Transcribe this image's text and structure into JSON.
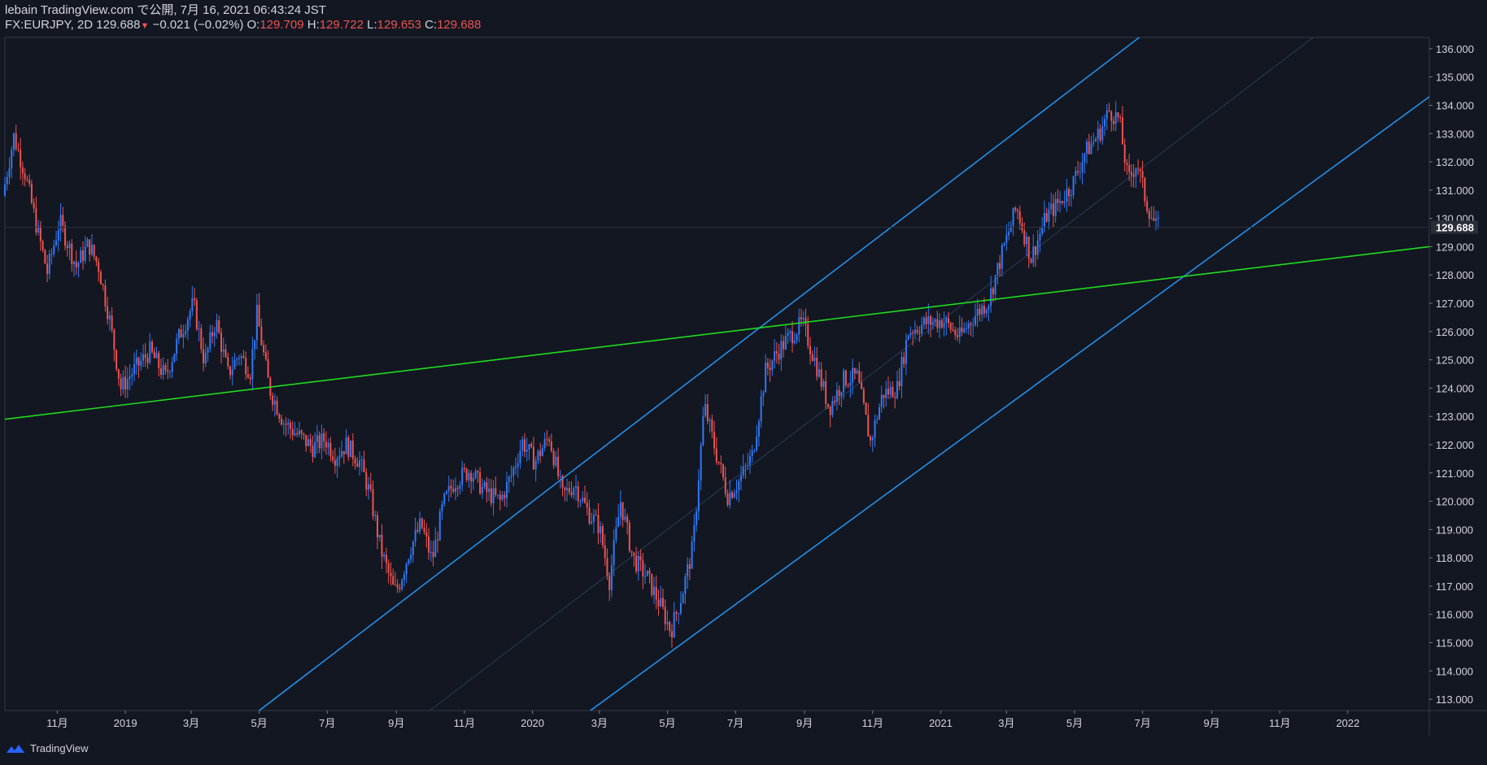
{
  "header": {
    "publisher_line": "lebain TradingView.com で公開, 7月 16, 2021 06:43:24 JST",
    "symbol": "FX:EURJPY, 2D",
    "last": "129.688",
    "change": "−0.021 (−0.02%)",
    "o_label": "O:",
    "o_value": "129.709",
    "h_label": "H:",
    "h_value": "129.722",
    "l_label": "L:",
    "l_value": "129.653",
    "c_label": "C:",
    "c_value": "129.688"
  },
  "footer": {
    "brand": "TradingView"
  },
  "colors": {
    "background": "#131722",
    "up": "#2962ff",
    "up_candle": "#3179f5",
    "down": "#ef5350",
    "channel": "#2196f3",
    "trendline": "#1fdc1f",
    "axis_text": "#d1d4dc",
    "border": "#363a45"
  },
  "chart_data": {
    "type": "candlestick",
    "symbol": "FX:EURJPY",
    "interval": "2D",
    "last_price": 129.688,
    "y_ticks": [
      136,
      135,
      134,
      133,
      132,
      131,
      130,
      129,
      128,
      127,
      126,
      125,
      124,
      123,
      122,
      121,
      120,
      119,
      118,
      117,
      116,
      115,
      114,
      113
    ],
    "y_tick_labels": [
      "136.000",
      "135.000",
      "134.000",
      "133.000",
      "132.000",
      "131.000",
      "130.000",
      "129.000",
      "128.000",
      "127.000",
      "126.000",
      "125.000",
      "124.000",
      "123.000",
      "122.000",
      "121.000",
      "120.000",
      "119.000",
      "118.000",
      "117.000",
      "116.000",
      "115.000",
      "114.000",
      "113.000"
    ],
    "x_ticks": [
      {
        "label": "11月",
        "date": "2018-11-01"
      },
      {
        "label": "2019",
        "date": "2019-01-01"
      },
      {
        "label": "3月",
        "date": "2019-03-01"
      },
      {
        "label": "5月",
        "date": "2019-05-01"
      },
      {
        "label": "7月",
        "date": "2019-07-01"
      },
      {
        "label": "9月",
        "date": "2019-09-01"
      },
      {
        "label": "11月",
        "date": "2019-11-01"
      },
      {
        "label": "2020",
        "date": "2020-01-01"
      },
      {
        "label": "3月",
        "date": "2020-03-01"
      },
      {
        "label": "5月",
        "date": "2020-05-01"
      },
      {
        "label": "7月",
        "date": "2020-07-01"
      },
      {
        "label": "9月",
        "date": "2020-09-01"
      },
      {
        "label": "11月",
        "date": "2020-11-01"
      },
      {
        "label": "2021",
        "date": "2021-01-01"
      },
      {
        "label": "3月",
        "date": "2021-03-01"
      },
      {
        "label": "5月",
        "date": "2021-05-01"
      },
      {
        "label": "7月",
        "date": "2021-07-01"
      },
      {
        "label": "9月",
        "date": "2021-09-01"
      },
      {
        "label": "11月",
        "date": "2021-11-01"
      },
      {
        "label": "2022",
        "date": "2022-01-01"
      }
    ],
    "x_range": [
      "2018-09-15",
      "2022-03-15"
    ],
    "y_range": [
      112.6,
      136.4
    ],
    "path_points": [
      [
        "2018-09-15",
        130.8
      ],
      [
        "2018-09-25",
        132.9
      ],
      [
        "2018-10-05",
        131.6
      ],
      [
        "2018-10-15",
        129.8
      ],
      [
        "2018-10-25",
        128.1
      ],
      [
        "2018-11-05",
        129.9
      ],
      [
        "2018-11-20",
        128.3
      ],
      [
        "2018-12-01",
        129.1
      ],
      [
        "2018-12-10",
        128.3
      ],
      [
        "2018-12-20",
        126.4
      ],
      [
        "2018-12-30",
        124.0
      ],
      [
        "2019-01-10",
        124.6
      ],
      [
        "2019-01-25",
        125.3
      ],
      [
        "2019-02-08",
        124.4
      ],
      [
        "2019-02-20",
        125.8
      ],
      [
        "2019-03-05",
        127.0
      ],
      [
        "2019-03-15",
        124.9
      ],
      [
        "2019-03-25",
        126.4
      ],
      [
        "2019-04-05",
        124.5
      ],
      [
        "2019-04-15",
        125.2
      ],
      [
        "2019-04-25",
        124.6
      ],
      [
        "2019-05-01",
        126.6
      ],
      [
        "2019-05-12",
        124.0
      ],
      [
        "2019-05-25",
        122.8
      ],
      [
        "2019-06-05",
        122.4
      ],
      [
        "2019-06-20",
        121.9
      ],
      [
        "2019-07-01",
        122.2
      ],
      [
        "2019-07-10",
        121.6
      ],
      [
        "2019-07-20",
        122.0
      ],
      [
        "2019-08-01",
        121.4
      ],
      [
        "2019-08-10",
        120.3
      ],
      [
        "2019-08-20",
        118.3
      ],
      [
        "2019-09-01",
        116.8
      ],
      [
        "2019-09-05",
        117.0
      ],
      [
        "2019-09-15",
        118.3
      ],
      [
        "2019-09-25",
        119.2
      ],
      [
        "2019-10-05",
        117.9
      ],
      [
        "2019-10-15",
        119.9
      ],
      [
        "2019-10-25",
        120.7
      ],
      [
        "2019-11-08",
        121.1
      ],
      [
        "2019-11-20",
        120.4
      ],
      [
        "2019-12-05",
        120.0
      ],
      [
        "2019-12-15",
        120.9
      ],
      [
        "2019-12-25",
        122.1
      ],
      [
        "2020-01-05",
        121.4
      ],
      [
        "2020-01-18",
        122.3
      ],
      [
        "2020-01-30",
        120.2
      ],
      [
        "2020-02-10",
        120.6
      ],
      [
        "2020-02-22",
        119.6
      ],
      [
        "2020-03-03",
        119.1
      ],
      [
        "2020-03-12",
        117.2
      ],
      [
        "2020-03-22",
        120.0
      ],
      [
        "2020-04-02",
        118.0
      ],
      [
        "2020-04-15",
        117.3
      ],
      [
        "2020-04-28",
        116.2
      ],
      [
        "2020-05-06",
        115.4
      ],
      [
        "2020-05-16",
        116.7
      ],
      [
        "2020-05-26",
        118.4
      ],
      [
        "2020-06-05",
        123.4
      ],
      [
        "2020-06-15",
        121.8
      ],
      [
        "2020-06-26",
        120.2
      ],
      [
        "2020-07-06",
        120.7
      ],
      [
        "2020-07-18",
        121.6
      ],
      [
        "2020-07-30",
        124.6
      ],
      [
        "2020-08-10",
        125.3
      ],
      [
        "2020-08-20",
        125.8
      ],
      [
        "2020-09-01",
        126.3
      ],
      [
        "2020-09-12",
        125.0
      ],
      [
        "2020-09-25",
        123.3
      ],
      [
        "2020-10-08",
        124.3
      ],
      [
        "2020-10-20",
        124.4
      ],
      [
        "2020-11-01",
        122.1
      ],
      [
        "2020-11-12",
        123.8
      ],
      [
        "2020-11-25",
        124.0
      ],
      [
        "2020-12-05",
        126.0
      ],
      [
        "2020-12-20",
        126.3
      ],
      [
        "2021-01-05",
        126.4
      ],
      [
        "2021-01-20",
        125.8
      ],
      [
        "2021-02-01",
        126.5
      ],
      [
        "2021-02-15",
        127.1
      ],
      [
        "2021-02-28",
        128.9
      ],
      [
        "2021-03-12",
        130.4
      ],
      [
        "2021-03-25",
        128.6
      ],
      [
        "2021-04-08",
        130.1
      ],
      [
        "2021-04-20",
        130.6
      ],
      [
        "2021-05-01",
        131.2
      ],
      [
        "2021-05-12",
        132.3
      ],
      [
        "2021-05-25",
        133.0
      ],
      [
        "2021-06-03",
        133.8
      ],
      [
        "2021-06-12",
        133.5
      ],
      [
        "2021-06-20",
        131.3
      ],
      [
        "2021-06-28",
        132.0
      ],
      [
        "2021-07-06",
        130.6
      ],
      [
        "2021-07-15",
        129.688
      ]
    ],
    "drawings": {
      "channel_upper": [
        [
          "2019-05-01",
          112.6
        ],
        [
          "2021-06-28",
          136.4
        ]
      ],
      "channel_lower": [
        [
          "2020-02-22",
          112.6
        ],
        [
          "2022-03-15",
          134.3
        ]
      ],
      "channel_mid": [
        [
          "2019-10-01",
          112.6
        ],
        [
          "2021-12-01",
          136.4
        ]
      ],
      "trendline": [
        [
          "2018-09-15",
          122.9
        ],
        [
          "2022-03-15",
          129.0
        ]
      ]
    }
  }
}
